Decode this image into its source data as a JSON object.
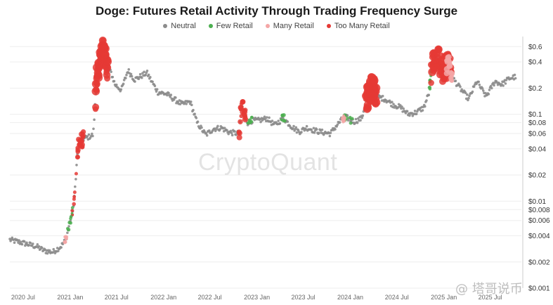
{
  "chart_data": {
    "type": "scatter",
    "title": "Doge: Futures Retail Activity Through Trading Frequency Surge",
    "legend_position": "top-center",
    "y_scale": "log",
    "ylim": [
      0.001,
      0.7
    ],
    "grid": "horizontal",
    "y_ticks": [
      {
        "value": 0.6,
        "label": "$0.6"
      },
      {
        "value": 0.4,
        "label": "$0.4"
      },
      {
        "value": 0.2,
        "label": "$0.2"
      },
      {
        "value": 0.1,
        "label": "$0.1"
      },
      {
        "value": 0.08,
        "label": "$0.08"
      },
      {
        "value": 0.06,
        "label": "$0.06"
      },
      {
        "value": 0.04,
        "label": "$0.04"
      },
      {
        "value": 0.02,
        "label": "$0.02"
      },
      {
        "value": 0.01,
        "label": "$0.01"
      },
      {
        "value": 0.008,
        "label": "$0.008"
      },
      {
        "value": 0.006,
        "label": "$0.006"
      },
      {
        "value": 0.004,
        "label": "$0.004"
      },
      {
        "value": 0.002,
        "label": "$0.002"
      },
      {
        "value": 0.001,
        "label": "$0.001"
      }
    ],
    "x_range": [
      "2020-05-10",
      "2025-10-31"
    ],
    "x_ticks": [
      {
        "date": "2020-07-01",
        "label": "2020 Jul"
      },
      {
        "date": "2021-01-01",
        "label": "2021 Jan"
      },
      {
        "date": "2021-07-01",
        "label": "2021 Jul"
      },
      {
        "date": "2022-01-01",
        "label": "2022 Jan"
      },
      {
        "date": "2022-07-01",
        "label": "2022 Jul"
      },
      {
        "date": "2023-01-01",
        "label": "2023 Jan"
      },
      {
        "date": "2023-07-01",
        "label": "2023 Jul"
      },
      {
        "date": "2024-01-01",
        "label": "2024 Jan"
      },
      {
        "date": "2024-07-01",
        "label": "2024 Jul"
      },
      {
        "date": "2025-01-01",
        "label": "2025 Jan"
      },
      {
        "date": "2025-07-01",
        "label": "2025 Jul"
      }
    ],
    "series": [
      {
        "name": "Neutral",
        "color": "#8c8c8c"
      },
      {
        "name": "Few Retail",
        "color": "#4caf50"
      },
      {
        "name": "Many Retail",
        "color": "#f4a6a6"
      },
      {
        "name": "Too Many Retail",
        "color": "#e53935"
      }
    ],
    "price_path": [
      [
        "2020-05-10",
        0.0036
      ],
      [
        "2020-06-15",
        0.0034
      ],
      [
        "2020-07-20",
        0.0032
      ],
      [
        "2020-08-25",
        0.003
      ],
      [
        "2020-09-20",
        0.0027
      ],
      [
        "2020-10-25",
        0.0026
      ],
      [
        "2020-11-25",
        0.003
      ],
      [
        "2020-12-15",
        0.0036
      ],
      [
        "2021-01-15",
        0.009
      ],
      [
        "2021-01-29",
        0.034
      ],
      [
        "2021-02-05",
        0.045
      ],
      [
        "2021-02-20",
        0.052
      ],
      [
        "2021-03-15",
        0.055
      ],
      [
        "2021-04-01",
        0.058
      ],
      [
        "2021-04-16",
        0.3
      ],
      [
        "2021-05-08",
        0.62
      ],
      [
        "2021-05-25",
        0.34
      ],
      [
        "2021-06-10",
        0.3
      ],
      [
        "2021-06-25",
        0.22
      ],
      [
        "2021-07-20",
        0.19
      ],
      [
        "2021-08-15",
        0.32
      ],
      [
        "2021-09-10",
        0.25
      ],
      [
        "2021-10-28",
        0.3
      ],
      [
        "2021-11-15",
        0.24
      ],
      [
        "2021-12-10",
        0.18
      ],
      [
        "2022-01-15",
        0.17
      ],
      [
        "2022-02-10",
        0.15
      ],
      [
        "2022-03-15",
        0.13
      ],
      [
        "2022-04-15",
        0.14
      ],
      [
        "2022-05-12",
        0.08
      ],
      [
        "2022-06-15",
        0.058
      ],
      [
        "2022-07-15",
        0.068
      ],
      [
        "2022-08-15",
        0.07
      ],
      [
        "2022-09-15",
        0.062
      ],
      [
        "2022-10-25",
        0.06
      ],
      [
        "2022-10-30",
        0.11
      ],
      [
        "2022-11-05",
        0.12
      ],
      [
        "2022-11-25",
        0.08
      ],
      [
        "2022-12-15",
        0.085
      ],
      [
        "2023-01-10",
        0.085
      ],
      [
        "2023-02-10",
        0.09
      ],
      [
        "2023-03-10",
        0.075
      ],
      [
        "2023-04-15",
        0.09
      ],
      [
        "2023-05-15",
        0.073
      ],
      [
        "2023-06-15",
        0.063
      ],
      [
        "2023-07-15",
        0.07
      ],
      [
        "2023-08-15",
        0.065
      ],
      [
        "2023-09-15",
        0.062
      ],
      [
        "2023-10-15",
        0.06
      ],
      [
        "2023-11-10",
        0.075
      ],
      [
        "2023-12-10",
        0.095
      ],
      [
        "2024-01-15",
        0.082
      ],
      [
        "2024-02-15",
        0.09
      ],
      [
        "2024-03-05",
        0.15
      ],
      [
        "2024-03-28",
        0.22
      ],
      [
        "2024-04-15",
        0.16
      ],
      [
        "2024-05-15",
        0.15
      ],
      [
        "2024-06-15",
        0.13
      ],
      [
        "2024-07-15",
        0.12
      ],
      [
        "2024-08-15",
        0.1
      ],
      [
        "2024-09-15",
        0.105
      ],
      [
        "2024-10-15",
        0.12
      ],
      [
        "2024-11-05",
        0.18
      ],
      [
        "2024-11-15",
        0.38
      ],
      [
        "2024-12-08",
        0.46
      ],
      [
        "2024-12-25",
        0.32
      ],
      [
        "2025-01-20",
        0.38
      ],
      [
        "2025-02-05",
        0.26
      ],
      [
        "2025-03-05",
        0.2
      ],
      [
        "2025-04-08",
        0.15
      ],
      [
        "2025-05-10",
        0.24
      ],
      [
        "2025-06-15",
        0.16
      ],
      [
        "2025-07-20",
        0.24
      ],
      [
        "2025-08-15",
        0.22
      ],
      [
        "2025-09-15",
        0.26
      ],
      [
        "2025-10-10",
        0.27
      ]
    ],
    "highlights": [
      {
        "series": "Too Many Retail",
        "from": "2021-04-10",
        "to": "2021-05-30",
        "size": "large"
      },
      {
        "series": "Too Many Retail",
        "from": "2021-01-28",
        "to": "2021-02-22",
        "size": "medium"
      },
      {
        "series": "Too Many Retail",
        "from": "2021-01-08",
        "to": "2021-01-25",
        "size": "small"
      },
      {
        "series": "Few Retail",
        "from": "2020-12-20",
        "to": "2021-01-12",
        "size": "small"
      },
      {
        "series": "Many Retail",
        "from": "2020-12-10",
        "to": "2020-12-20",
        "size": "small"
      },
      {
        "series": "Too Many Retail",
        "from": "2022-10-22",
        "to": "2022-11-18",
        "size": "medium"
      },
      {
        "series": "Few Retail",
        "from": "2022-11-25",
        "to": "2022-12-15",
        "size": "small"
      },
      {
        "series": "Few Retail",
        "from": "2023-04-05",
        "to": "2023-04-25",
        "size": "small"
      },
      {
        "series": "Few Retail",
        "from": "2023-12-10",
        "to": "2024-01-10",
        "size": "small"
      },
      {
        "series": "Many Retail",
        "from": "2023-12-01",
        "to": "2023-12-12",
        "size": "small"
      },
      {
        "series": "Too Many Retail",
        "from": "2024-03-01",
        "to": "2024-04-12",
        "size": "large"
      },
      {
        "series": "Few Retail",
        "from": "2024-11-06",
        "to": "2024-11-12",
        "size": "small"
      },
      {
        "series": "Too Many Retail",
        "from": "2024-11-12",
        "to": "2025-01-28",
        "size": "large"
      },
      {
        "series": "Many Retail",
        "from": "2025-01-10",
        "to": "2025-02-02",
        "size": "medium"
      }
    ]
  },
  "watermark": "CryptoQuant",
  "source_tag": "@ 塔哥说币"
}
